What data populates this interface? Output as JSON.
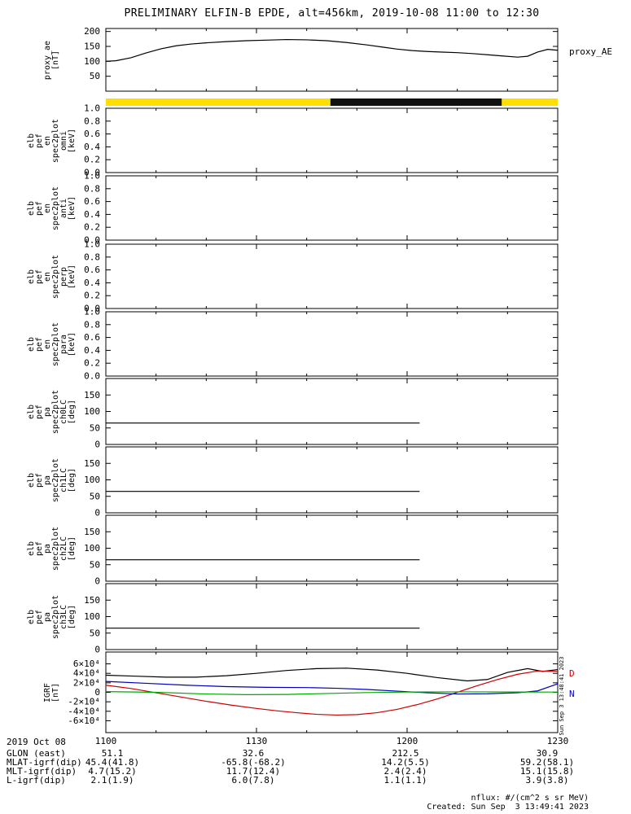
{
  "title": "PRELIMINARY ELFIN-B EPDE, alt=456km, 2019-10-08 11:00 to 12:30",
  "right_labels": {
    "proxy_ae": "proxy_AE"
  },
  "notes": {
    "flux_units": "nflux: #/(cm^2 s sr MeV)",
    "created": "Created: Sun Sep  3 13:49:41 2023",
    "side_timestamp": "Sun Sep  3 13:48:41 2023"
  },
  "footer": {
    "date_label": "2019 Oct 08",
    "row_labels": [
      "GLON (east)",
      "MLAT-igrf(dip)",
      "MLT-igrf(dip)",
      "L-igrf(dip)"
    ],
    "rows": [
      [
        "51.1",
        "32.6",
        "212.5",
        "30.9"
      ],
      [
        "45.4(41.8)",
        "-65.8(-68.2)",
        "14.2(5.5)",
        "59.2(58.1)"
      ],
      [
        "4.7(15.2)",
        "11.7(12.4)",
        "2.4(2.4)",
        "15.1(15.8)"
      ],
      [
        "2.1(1.9)",
        "6.0(7.8)",
        "1.1(1.1)",
        "3.9(3.8)"
      ]
    ]
  },
  "chart_data": {
    "type": "line",
    "layout": "stacked-time-series-panels",
    "time_axis": {
      "start": "2019-10-08/11:00",
      "end": "2019-10-08/12:30",
      "span_minutes": 90,
      "tick_labels": [
        "1100",
        "1130",
        "1200",
        "1230"
      ],
      "tick_minutes": [
        0,
        30,
        60,
        90
      ],
      "minor_tick_step_minutes": 10
    },
    "panels": [
      {
        "id": "proxy_ae",
        "kind": "line",
        "ylabel_lines": [
          "proxy_ae",
          "[nT]"
        ],
        "ylim": [
          0,
          210
        ],
        "yticks": [
          50,
          100,
          150,
          200
        ],
        "ytick_labels": [
          "50",
          "100",
          "150",
          "200"
        ],
        "series": [
          {
            "name": "proxy_AE",
            "color": "#000000",
            "t": [
              0,
              2,
              5,
              8,
              11,
              14,
              17,
              20,
              24,
              28,
              32,
              36,
              40,
              44,
              48,
              52,
              55,
              58,
              61,
              64,
              67,
              70,
              73,
              76,
              79,
              82,
              84,
              86,
              88,
              90
            ],
            "v": [
              100,
              102,
              112,
              128,
              142,
              152,
              158,
              162,
              166,
              169,
              171,
              173,
              172,
              169,
              163,
              155,
              148,
              141,
              136,
              133,
              131,
              129,
              126,
              122,
              118,
              114,
              117,
              131,
              140,
              137
            ]
          }
        ]
      },
      {
        "id": "sunlight_bar",
        "kind": "strip",
        "segments": [
          {
            "color": "#ffdf00",
            "f0": 0.0,
            "f1": 1.0
          },
          {
            "color": "#111111",
            "f0": 0.497,
            "f1": 0.876
          }
        ]
      },
      {
        "id": "elb_pef_en_spec2plot_omni",
        "kind": "empty",
        "ylabel_lines": [
          "elb",
          "pef",
          "en",
          "spec2plot",
          "omni",
          "[keV]"
        ],
        "ylim": [
          0,
          1.0
        ],
        "yticks": [
          0,
          0.2,
          0.4,
          0.6,
          0.8,
          1.0
        ],
        "ytick_labels": [
          "0.0",
          "0.2",
          "0.4",
          "0.6",
          "0.8",
          "1.0"
        ],
        "series": []
      },
      {
        "id": "elb_pef_en_spec2plot_anti",
        "kind": "empty",
        "ylabel_lines": [
          "elb",
          "pef",
          "en",
          "spec2plot",
          "anti",
          "[keV]"
        ],
        "ylim": [
          0,
          1.0
        ],
        "yticks": [
          0,
          0.2,
          0.4,
          0.6,
          0.8,
          1.0
        ],
        "ytick_labels": [
          "0.0",
          "0.2",
          "0.4",
          "0.6",
          "0.8",
          "1.0"
        ],
        "series": []
      },
      {
        "id": "elb_pef_en_spec2plot_perp",
        "kind": "empty",
        "ylabel_lines": [
          "elb",
          "pef",
          "en",
          "spec2plot",
          "perp",
          "[keV]"
        ],
        "ylim": [
          0,
          1.0
        ],
        "yticks": [
          0,
          0.2,
          0.4,
          0.6,
          0.8,
          1.0
        ],
        "ytick_labels": [
          "0.0",
          "0.2",
          "0.4",
          "0.6",
          "0.8",
          "1.0"
        ],
        "series": []
      },
      {
        "id": "elb_pef_en_spec2plot_para",
        "kind": "empty",
        "ylabel_lines": [
          "elb",
          "pef",
          "en",
          "spec2plot",
          "para",
          "[keV]"
        ],
        "ylim": [
          0,
          1.0
        ],
        "yticks": [
          0,
          0.2,
          0.4,
          0.6,
          0.8,
          1.0
        ],
        "ytick_labels": [
          "0.0",
          "0.2",
          "0.4",
          "0.6",
          "0.8",
          "1.0"
        ],
        "series": []
      },
      {
        "id": "elb_pef_pa_spec2plot_ch0LC",
        "kind": "line",
        "ylabel_lines": [
          "elb",
          "pef",
          "pa",
          "spec2plot",
          "ch0LC",
          "[deg]"
        ],
        "ylim": [
          0,
          200
        ],
        "yticks": [
          0,
          50,
          100,
          150
        ],
        "ytick_labels": [
          "0",
          "50",
          "100",
          "150"
        ],
        "series": [
          {
            "name": "loss_cone",
            "color": "#000000",
            "t": [
              0,
              62.5
            ],
            "v": [
              65,
              65
            ]
          }
        ]
      },
      {
        "id": "elb_pef_pa_spec2plot_ch1LC",
        "kind": "line",
        "ylabel_lines": [
          "elb",
          "pef",
          "pa",
          "spec2plot",
          "ch1LC",
          "[deg]"
        ],
        "ylim": [
          0,
          200
        ],
        "yticks": [
          0,
          50,
          100,
          150
        ],
        "ytick_labels": [
          "0",
          "50",
          "100",
          "150"
        ],
        "series": [
          {
            "name": "loss_cone",
            "color": "#000000",
            "t": [
              0,
              62.5
            ],
            "v": [
              65,
              65
            ]
          }
        ]
      },
      {
        "id": "elb_pef_pa_spec2plot_ch2LC",
        "kind": "line",
        "ylabel_lines": [
          "elb",
          "pef",
          "pa",
          "spec2plot",
          "ch2LC",
          "[deg]"
        ],
        "ylim": [
          0,
          200
        ],
        "yticks": [
          0,
          50,
          100,
          150
        ],
        "ytick_labels": [
          "0",
          "50",
          "100",
          "150"
        ],
        "series": [
          {
            "name": "loss_cone",
            "color": "#000000",
            "t": [
              0,
              62.5
            ],
            "v": [
              65,
              65
            ]
          }
        ]
      },
      {
        "id": "elb_pef_pa_spec2plot_ch3LC",
        "kind": "line",
        "ylabel_lines": [
          "elb",
          "pef",
          "pa",
          "spec2plot",
          "ch3LC",
          "[deg]"
        ],
        "ylim": [
          0,
          200
        ],
        "yticks": [
          0,
          50,
          100,
          150
        ],
        "ytick_labels": [
          "0",
          "50",
          "100",
          "150"
        ],
        "series": [
          {
            "name": "loss_cone",
            "color": "#000000",
            "t": [
              0,
              62.5
            ],
            "v": [
              65,
              65
            ]
          }
        ]
      },
      {
        "id": "igrf",
        "kind": "line",
        "ylabel_lines": [
          "IGRF",
          "[nT]"
        ],
        "ylim": [
          -85000,
          85000
        ],
        "yticks": [
          -60000,
          -40000,
          -20000,
          0,
          20000,
          40000,
          60000
        ],
        "ytick_labels": [
          "-6×10⁴",
          "-4×10⁴",
          "-2×10⁴",
          "0",
          "2×10⁴",
          "4×10⁴",
          "6×10⁴"
        ],
        "series": [
          {
            "name": "igrf_total",
            "color": "#000000",
            "t": [
              0,
              6,
              12,
              18,
              24,
              30,
              36,
              42,
              48,
              54,
              60,
              66,
              72,
              76,
              80,
              84,
              87,
              90
            ],
            "v": [
              36000,
              34000,
              32000,
              32000,
              35000,
              40000,
              46000,
              50000,
              51000,
              47000,
              40000,
              31000,
              24000,
              27000,
              42000,
              50000,
              44000,
              48000
            ]
          },
          {
            "name": "igrf_D",
            "color": "#cc0000",
            "t": [
              0,
              5,
              10,
              15,
              20,
              25,
              30,
              34,
              38,
              42,
              46,
              50,
              54,
              58,
              62,
              66,
              70,
              74,
              78,
              82,
              86,
              90
            ],
            "v": [
              15000,
              8000,
              -1000,
              -10000,
              -19000,
              -27000,
              -34000,
              -39000,
              -43000,
              -46500,
              -48000,
              -47000,
              -43000,
              -36000,
              -26000,
              -14000,
              0,
              14000,
              27000,
              38000,
              45000,
              44000
            ]
          },
          {
            "name": "igrf_N",
            "color": "#0000bb",
            "t": [
              0,
              8,
              16,
              24,
              32,
              40,
              46,
              52,
              58,
              64,
              70,
              76,
              82,
              86,
              90
            ],
            "v": [
              23000,
              19000,
              15000,
              12000,
              10500,
              10000,
              8500,
              6000,
              2500,
              -1000,
              -3500,
              -3000,
              -1000,
              3000,
              18000
            ]
          },
          {
            "name": "igrf_E",
            "color": "#00aa00",
            "t": [
              0,
              10,
              20,
              28,
              36,
              44,
              52,
              60,
              68,
              76,
              84,
              90
            ],
            "v": [
              1500,
              0,
              -3500,
              -5000,
              -4500,
              -2500,
              -500,
              500,
              1000,
              1000,
              500,
              500
            ]
          }
        ],
        "right_labels": [
          {
            "text": "D",
            "color": "#cc0000",
            "v": 40000
          },
          {
            "text": "N",
            "color": "#0000bb",
            "v": -3000
          }
        ]
      }
    ]
  }
}
